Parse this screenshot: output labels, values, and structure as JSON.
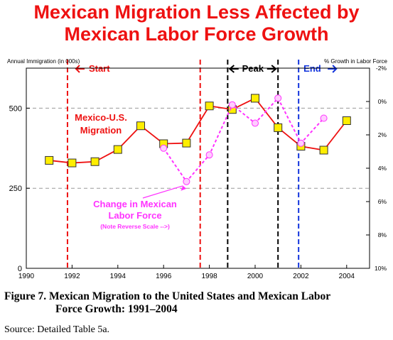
{
  "chart_data": {
    "type": "line",
    "title_line1": "Mexican Migration Less Affected by",
    "title_line2": "Mexican Labor Force Growth",
    "left_axis_label": "Annual Immigration (in 000s)",
    "right_axis_label": "% Growth in Labor Force",
    "x_ticks": [
      "1990",
      "1992",
      "1994",
      "1996",
      "1998",
      "2000",
      "2002",
      "2004"
    ],
    "y_left_ticks": [
      "0",
      "250",
      "500"
    ],
    "y_right_ticks": [
      "-2%",
      "0%",
      "2%",
      "4%",
      "6%",
      "8%",
      "10%"
    ],
    "xlim": [
      1990,
      2005
    ],
    "ylim_left": [
      0,
      625
    ],
    "ylim_right_reversed": [
      -2,
      10
    ],
    "grid": "dashed horizontal at 250 and 500",
    "series": [
      {
        "name": "Mexico-U.S. Migration",
        "axis": "left",
        "color": "#ee1111",
        "marker": "square",
        "marker_fill": "#ffee00",
        "x": [
          1991,
          1992,
          1993,
          1994,
          1995,
          1996,
          1997,
          1998,
          1999,
          2000,
          2001,
          2002,
          2003,
          2004
        ],
        "y": [
          337,
          329,
          333,
          371,
          445,
          389,
          391,
          507,
          496,
          531,
          439,
          381,
          369,
          461
        ]
      },
      {
        "name": "Change in Mexican Labor Force",
        "axis": "right",
        "color": "#ff33ff",
        "marker": "circle",
        "marker_fill": "#ffccff",
        "x": [
          1996,
          1997,
          1998,
          1999,
          2000,
          2001,
          2002,
          2003
        ],
        "y": [
          2.8,
          4.8,
          3.2,
          0.2,
          1.3,
          -0.2,
          2.5,
          1.0
        ]
      }
    ],
    "markers": [
      {
        "label": "Start",
        "arrow": "left",
        "x": 1991.8,
        "color": "#ee1111"
      },
      {
        "label": "",
        "x": 1997.6,
        "color": "#ee1111"
      },
      {
        "label": "Peak",
        "arrow": "both",
        "x_from": 1998.8,
        "x_to": 2001.0,
        "color": "#000000"
      },
      {
        "label": "End",
        "arrow": "right",
        "x": 2001.9,
        "color": "#1133dd"
      }
    ],
    "annotations": {
      "migration_label_1": "Mexico-U.S.",
      "migration_label_2": "Migration",
      "labor_label_1": "Change in Mexican",
      "labor_label_2": "Labor Force",
      "labor_note": "(Note Reverse Scale -->)"
    }
  },
  "caption": {
    "line1": "Figure 7.  Mexican Migration to the United States and Mexican Labor",
    "line2": "Force Growth:  1991–2004"
  },
  "source": "Source:  Detailed Table 5a."
}
